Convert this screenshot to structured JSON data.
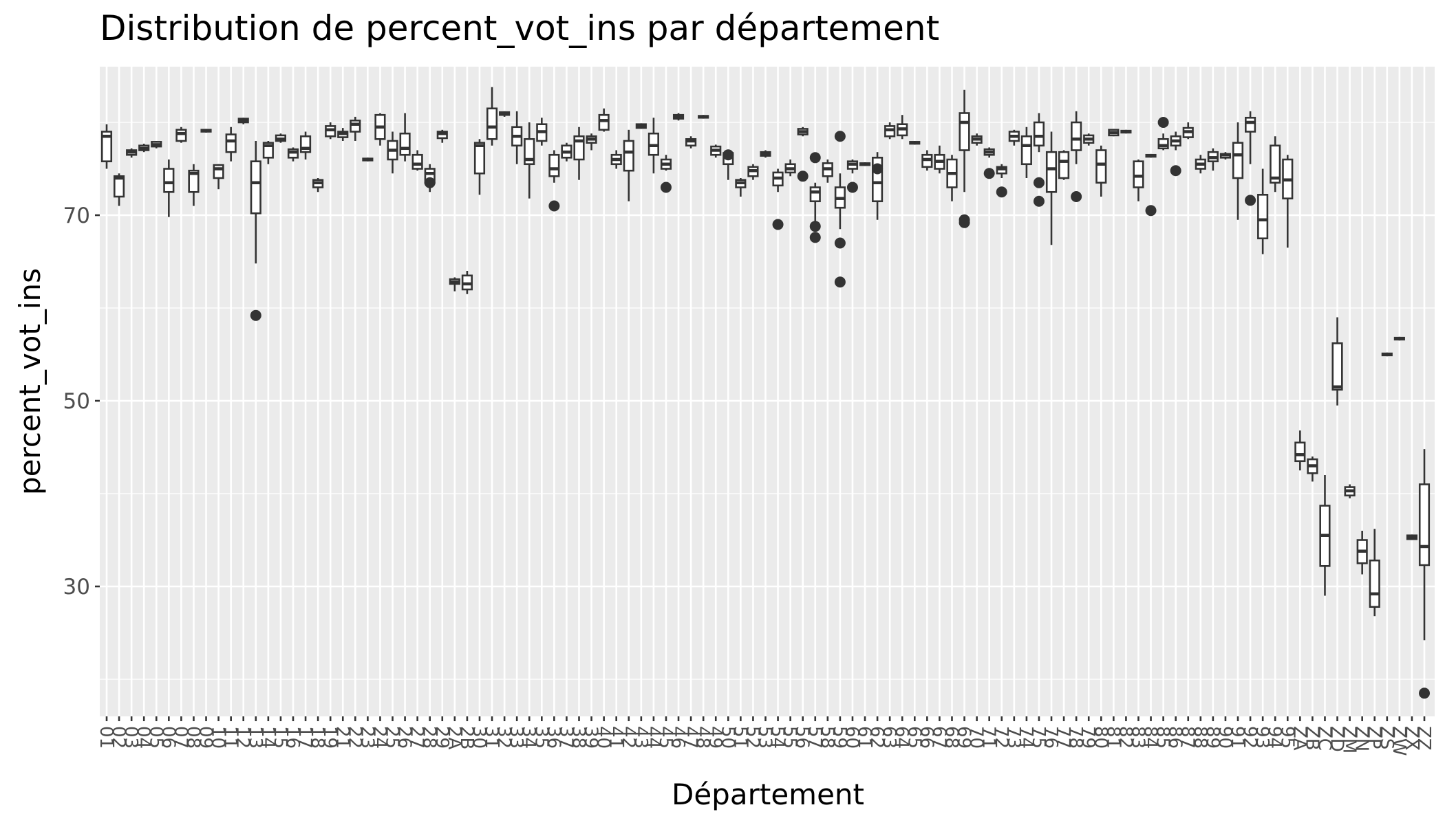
{
  "chart_data": {
    "type": "boxplot",
    "title": "Distribution de percent_vot_ins par département",
    "xlabel": "Département",
    "ylabel": "percent_vot_ins",
    "ylim": [
      16,
      86
    ],
    "yticks": [
      30,
      50,
      70
    ],
    "grid": true,
    "legend": "none",
    "colors": {
      "panel": "#EBEBEB",
      "grid": "#FFFFFF",
      "box_line": "#333333",
      "outlier": "#333333",
      "box_fill": "#FFFFFF"
    },
    "tick_labels_visible": [
      "01",
      "02",
      "03",
      "04",
      "05",
      "06",
      "07",
      "08",
      "09",
      "10",
      "11",
      "12",
      "13",
      "14",
      "15",
      "16",
      "17",
      "18",
      "19",
      "21",
      "22",
      "23",
      "24",
      "25",
      "26",
      "27",
      "28",
      "29",
      "2A",
      "2B",
      "30",
      "31",
      "32",
      "33",
      "34",
      "35",
      "36",
      "37",
      "38",
      "39",
      "40",
      "41",
      "42",
      "43",
      "44",
      "45",
      "46",
      "47",
      "48",
      "49",
      "50",
      "51",
      "52",
      "53",
      "54",
      "55",
      "56",
      "57",
      "58",
      "59",
      "60",
      "61",
      "62",
      "63",
      "64",
      "65",
      "66",
      "67",
      "68",
      "69",
      "70",
      "71",
      "72",
      "73",
      "74",
      "75",
      "76",
      "77",
      "78",
      "79",
      "80",
      "81",
      "82",
      "83",
      "84",
      "85",
      "86",
      "87",
      "88",
      "89",
      "90",
      "91",
      "92",
      "93",
      "94",
      "95",
      "ZA",
      "ZB",
      "ZC",
      "ZD",
      "ZM",
      "ZN",
      "ZP",
      "ZS",
      "ZW",
      "ZX",
      "ZZ"
    ],
    "categories": [
      "01",
      "02",
      "03",
      "04",
      "05",
      "06",
      "07",
      "08",
      "09",
      "10",
      "11",
      "12",
      "13",
      "14",
      "15",
      "16",
      "17",
      "18",
      "19",
      "21",
      "22",
      "23",
      "24",
      "25",
      "26",
      "27",
      "28",
      "29",
      "2A",
      "2B",
      "30",
      "31",
      "32",
      "33",
      "34",
      "35",
      "36",
      "37",
      "38",
      "39",
      "40",
      "41",
      "42",
      "43",
      "44",
      "45",
      "46",
      "47",
      "48",
      "49",
      "50",
      "51",
      "52",
      "53",
      "54",
      "55",
      "56",
      "57",
      "58",
      "59",
      "60",
      "61",
      "62",
      "63",
      "64",
      "65",
      "66",
      "67",
      "68",
      "69",
      "70",
      "71",
      "72",
      "73",
      "74",
      "75",
      "76",
      "77",
      "78",
      "79",
      "80",
      "81",
      "82",
      "83",
      "84",
      "85",
      "86",
      "87",
      "88",
      "89",
      "90",
      "91",
      "92",
      "93",
      "94",
      "95",
      "ZA",
      "ZB",
      "ZC",
      "ZD",
      "ZM",
      "ZN",
      "ZP",
      "ZS",
      "ZW",
      "ZX",
      "ZZ"
    ],
    "boxes": [
      {
        "low": 75,
        "q1": 75.8,
        "med": 78.5,
        "q3": 79,
        "high": 79.8,
        "out": []
      },
      {
        "low": 71,
        "q1": 72,
        "med": 74,
        "q3": 74.2,
        "high": 74.5,
        "out": []
      },
      {
        "low": 76.2,
        "q1": 76.5,
        "med": 76.8,
        "q3": 77,
        "high": 77.2,
        "out": []
      },
      {
        "low": 76.8,
        "q1": 77,
        "med": 77.2,
        "q3": 77.5,
        "high": 77.7,
        "out": []
      },
      {
        "low": 77.2,
        "q1": 77.4,
        "med": 77.6,
        "q3": 77.9,
        "high": 78,
        "out": []
      },
      {
        "low": 69.8,
        "q1": 72.5,
        "med": 73.5,
        "q3": 75,
        "high": 76,
        "out": []
      },
      {
        "low": 77.8,
        "q1": 78,
        "med": 78.8,
        "q3": 79.2,
        "high": 79.5,
        "out": []
      },
      {
        "low": 71,
        "q1": 72.5,
        "med": 74.5,
        "q3": 74.8,
        "high": 75.5,
        "out": []
      },
      {
        "low": 78.9,
        "q1": 79,
        "med": 79.1,
        "q3": 79.2,
        "high": 79.3,
        "out": []
      },
      {
        "low": 72.8,
        "q1": 74,
        "med": 75,
        "q3": 75.4,
        "high": 75.5,
        "out": []
      },
      {
        "low": 75.8,
        "q1": 76.8,
        "med": 78,
        "q3": 78.7,
        "high": 79.5,
        "out": []
      },
      {
        "low": 79.8,
        "q1": 80,
        "med": 80.2,
        "q3": 80.4,
        "high": 80.5,
        "out": []
      },
      {
        "low": 64.8,
        "q1": 70.2,
        "med": 73.5,
        "q3": 75.8,
        "high": 78,
        "out": [
          59.2
        ]
      },
      {
        "low": 75.5,
        "q1": 76.2,
        "med": 77.5,
        "q3": 77.8,
        "high": 78,
        "out": []
      },
      {
        "low": 77.8,
        "q1": 78,
        "med": 78.2,
        "q3": 78.6,
        "high": 78.8,
        "out": []
      },
      {
        "low": 75.8,
        "q1": 76.2,
        "med": 76.8,
        "q3": 77.1,
        "high": 77.3,
        "out": []
      },
      {
        "low": 76,
        "q1": 76.8,
        "med": 77.2,
        "q3": 78.5,
        "high": 79,
        "out": []
      },
      {
        "low": 72.5,
        "q1": 73,
        "med": 73.5,
        "q3": 73.8,
        "high": 74,
        "out": []
      },
      {
        "low": 78.2,
        "q1": 78.5,
        "med": 79.2,
        "q3": 79.6,
        "high": 80,
        "out": []
      },
      {
        "low": 78,
        "q1": 78.4,
        "med": 78.8,
        "q3": 79,
        "high": 79.4,
        "out": []
      },
      {
        "low": 78,
        "q1": 79,
        "med": 79.8,
        "q3": 80.2,
        "high": 80.6,
        "out": []
      },
      {
        "low": 75.8,
        "q1": 75.9,
        "med": 76,
        "q3": 76.1,
        "high": 76.2,
        "out": []
      },
      {
        "low": 77.5,
        "q1": 78.2,
        "med": 79.5,
        "q3": 80.8,
        "high": 81,
        "out": []
      },
      {
        "low": 74.5,
        "q1": 76,
        "med": 77,
        "q3": 78,
        "high": 79,
        "out": []
      },
      {
        "low": 75.8,
        "q1": 76.5,
        "med": 77.2,
        "q3": 78.8,
        "high": 81,
        "out": []
      },
      {
        "low": 74.8,
        "q1": 75,
        "med": 75.5,
        "q3": 76.5,
        "high": 77,
        "out": []
      },
      {
        "low": 72.5,
        "q1": 73.5,
        "med": 74.5,
        "q3": 75,
        "high": 75.5,
        "out": [
          73.5
        ]
      },
      {
        "low": 77.8,
        "q1": 78.3,
        "med": 78.8,
        "q3": 79,
        "high": 79.2,
        "out": []
      },
      {
        "low": 61.8,
        "q1": 62.6,
        "med": 62.8,
        "q3": 63.1,
        "high": 63.3,
        "out": []
      },
      {
        "low": 61.5,
        "q1": 62,
        "med": 62.6,
        "q3": 63.5,
        "high": 64,
        "out": []
      },
      {
        "low": 72.2,
        "q1": 74.5,
        "med": 77.5,
        "q3": 77.8,
        "high": 78.2,
        "out": []
      },
      {
        "low": 77.5,
        "q1": 78.2,
        "med": 79.5,
        "q3": 81.5,
        "high": 83.8,
        "out": []
      },
      {
        "low": 80.6,
        "q1": 80.8,
        "med": 81,
        "q3": 81.1,
        "high": 81.2,
        "out": []
      },
      {
        "low": 75.5,
        "q1": 77.5,
        "med": 78.5,
        "q3": 79.5,
        "high": 81.2,
        "out": []
      },
      {
        "low": 71.8,
        "q1": 75.5,
        "med": 76,
        "q3": 78.2,
        "high": 80,
        "out": []
      },
      {
        "low": 77.5,
        "q1": 78,
        "med": 79,
        "q3": 79.8,
        "high": 80.5,
        "out": []
      },
      {
        "low": 73.5,
        "q1": 74.2,
        "med": 75,
        "q3": 76.5,
        "high": 77,
        "out": [
          71
        ]
      },
      {
        "low": 75.8,
        "q1": 76.2,
        "med": 76.8,
        "q3": 77.5,
        "high": 77.8,
        "out": []
      },
      {
        "low": 73.8,
        "q1": 76,
        "med": 78,
        "q3": 78.5,
        "high": 79.5,
        "out": []
      },
      {
        "low": 77,
        "q1": 77.8,
        "med": 78.2,
        "q3": 78.5,
        "high": 78.8,
        "out": []
      },
      {
        "low": 79,
        "q1": 79.2,
        "med": 80.2,
        "q3": 80.8,
        "high": 81.5,
        "out": []
      },
      {
        "low": 75,
        "q1": 75.5,
        "med": 76,
        "q3": 76.5,
        "high": 77,
        "out": []
      },
      {
        "low": 71.5,
        "q1": 74.8,
        "med": 76.8,
        "q3": 78,
        "high": 79.2,
        "out": []
      },
      {
        "low": 79.3,
        "q1": 79.4,
        "med": 79.6,
        "q3": 79.8,
        "high": 79.9,
        "out": []
      },
      {
        "low": 74.5,
        "q1": 76.5,
        "med": 77.5,
        "q3": 78.8,
        "high": 80.5,
        "out": []
      },
      {
        "low": 74.8,
        "q1": 75,
        "med": 75.5,
        "q3": 76,
        "high": 76.5,
        "out": [
          73
        ]
      },
      {
        "low": 80.2,
        "q1": 80.4,
        "med": 80.6,
        "q3": 80.8,
        "high": 81,
        "out": []
      },
      {
        "low": 77.2,
        "q1": 77.5,
        "med": 78,
        "q3": 78.2,
        "high": 78.5,
        "out": []
      },
      {
        "low": 80.4,
        "q1": 80.5,
        "med": 80.6,
        "q3": 80.7,
        "high": 80.8,
        "out": []
      },
      {
        "low": 76.2,
        "q1": 76.5,
        "med": 77,
        "q3": 77.4,
        "high": 77.6,
        "out": []
      },
      {
        "low": 73.8,
        "q1": 75.5,
        "med": 76.5,
        "q3": 76.7,
        "high": 76.8,
        "out": [
          76.5
        ]
      },
      {
        "low": 72,
        "q1": 73,
        "med": 73.5,
        "q3": 73.8,
        "high": 74,
        "out": []
      },
      {
        "low": 73.8,
        "q1": 74.2,
        "med": 74.8,
        "q3": 75.2,
        "high": 75.5,
        "out": []
      },
      {
        "low": 76.2,
        "q1": 76.4,
        "med": 76.6,
        "q3": 76.8,
        "high": 77,
        "out": []
      },
      {
        "low": 72.5,
        "q1": 73.2,
        "med": 74,
        "q3": 74.6,
        "high": 75,
        "out": [
          69
        ]
      },
      {
        "low": 74.2,
        "q1": 74.6,
        "med": 75,
        "q3": 75.5,
        "high": 76,
        "out": []
      },
      {
        "low": 78.5,
        "q1": 78.7,
        "med": 79,
        "q3": 79.3,
        "high": 79.5,
        "out": [
          74.2
        ]
      },
      {
        "low": 69.2,
        "q1": 71.5,
        "med": 72.5,
        "q3": 73,
        "high": 73.5,
        "out": [
          76.2,
          68.8,
          67.6
        ]
      },
      {
        "low": 73.5,
        "q1": 74.2,
        "med": 75,
        "q3": 75.6,
        "high": 76,
        "out": []
      },
      {
        "low": 68.5,
        "q1": 70.8,
        "med": 71.8,
        "q3": 73,
        "high": 74.5,
        "out": [
          78.5,
          67,
          62.8
        ]
      },
      {
        "low": 74.5,
        "q1": 75,
        "med": 75.5,
        "q3": 75.8,
        "high": 76,
        "out": [
          73
        ]
      },
      {
        "low": 75.3,
        "q1": 75.4,
        "med": 75.5,
        "q3": 75.6,
        "high": 75.7,
        "out": []
      },
      {
        "low": 69.5,
        "q1": 71.5,
        "med": 73.5,
        "q3": 76.2,
        "high": 76.8,
        "out": [
          75
        ]
      },
      {
        "low": 78.2,
        "q1": 78.5,
        "med": 79.2,
        "q3": 79.6,
        "high": 80,
        "out": []
      },
      {
        "low": 78.2,
        "q1": 78.6,
        "med": 79.3,
        "q3": 79.8,
        "high": 80.8,
        "out": []
      },
      {
        "low": 77.6,
        "q1": 77.7,
        "med": 77.8,
        "q3": 77.9,
        "high": 78,
        "out": []
      },
      {
        "low": 74.8,
        "q1": 75.2,
        "med": 76,
        "q3": 76.5,
        "high": 77,
        "out": []
      },
      {
        "low": 74.5,
        "q1": 75,
        "med": 75.8,
        "q3": 76.5,
        "high": 77.5,
        "out": []
      },
      {
        "low": 71.5,
        "q1": 73,
        "med": 74.5,
        "q3": 76,
        "high": 76.5,
        "out": []
      },
      {
        "low": 72.5,
        "q1": 77,
        "med": 80,
        "q3": 81,
        "high": 83.5,
        "out": [
          69.5,
          69.2
        ]
      },
      {
        "low": 77.5,
        "q1": 77.8,
        "med": 78.2,
        "q3": 78.5,
        "high": 78.8,
        "out": []
      },
      {
        "low": 76.2,
        "q1": 76.5,
        "med": 76.8,
        "q3": 77.1,
        "high": 77.3,
        "out": [
          74.5
        ]
      },
      {
        "low": 74,
        "q1": 74.5,
        "med": 75,
        "q3": 75.2,
        "high": 75.5,
        "out": [
          72.5
        ]
      },
      {
        "low": 77.5,
        "q1": 78,
        "med": 78.5,
        "q3": 79,
        "high": 79.2,
        "out": []
      },
      {
        "low": 74,
        "q1": 75.5,
        "med": 77.5,
        "q3": 78.5,
        "high": 79.5,
        "out": []
      },
      {
        "low": 76.8,
        "q1": 77.5,
        "med": 78.5,
        "q3": 80,
        "high": 81,
        "out": [
          73.5,
          71.5
        ]
      },
      {
        "low": 66.8,
        "q1": 72.5,
        "med": 75,
        "q3": 76.8,
        "high": 79,
        "out": []
      },
      {
        "low": 73.8,
        "q1": 74,
        "med": 75.8,
        "q3": 76.8,
        "high": 77,
        "out": []
      },
      {
        "low": 75.5,
        "q1": 77,
        "med": 78.2,
        "q3": 80,
        "high": 81.2,
        "out": [
          72
        ]
      },
      {
        "low": 77.5,
        "q1": 77.8,
        "med": 78.2,
        "q3": 78.6,
        "high": 78.8,
        "out": []
      },
      {
        "low": 72,
        "q1": 73.5,
        "med": 75.5,
        "q3": 77,
        "high": 77.5,
        "out": []
      },
      {
        "low": 78.5,
        "q1": 78.6,
        "med": 78.9,
        "q3": 79.2,
        "high": 79.3,
        "out": []
      },
      {
        "low": 78.8,
        "q1": 78.9,
        "med": 79,
        "q3": 79.1,
        "high": 79.2,
        "out": []
      },
      {
        "low": 71.5,
        "q1": 73,
        "med": 74.2,
        "q3": 75.8,
        "high": 76,
        "out": []
      },
      {
        "low": 76.2,
        "q1": 76.3,
        "med": 76.4,
        "q3": 76.5,
        "high": 76.6,
        "out": [
          70.5
        ]
      },
      {
        "low": 77,
        "q1": 77.2,
        "med": 77.5,
        "q3": 78.2,
        "high": 78.8,
        "out": [
          80
        ]
      },
      {
        "low": 77,
        "q1": 77.5,
        "med": 78,
        "q3": 78.5,
        "high": 79,
        "out": [
          74.8
        ]
      },
      {
        "low": 78.2,
        "q1": 78.4,
        "med": 79,
        "q3": 79.4,
        "high": 80,
        "out": []
      },
      {
        "low": 74.5,
        "q1": 75,
        "med": 75.5,
        "q3": 76,
        "high": 76.5,
        "out": []
      },
      {
        "low": 74.8,
        "q1": 75.8,
        "med": 76.2,
        "q3": 76.8,
        "high": 77.2,
        "out": []
      },
      {
        "low": 76,
        "q1": 76.2,
        "med": 76.5,
        "q3": 76.6,
        "high": 76.8,
        "out": []
      },
      {
        "low": 69.5,
        "q1": 74,
        "med": 76.5,
        "q3": 77.8,
        "high": 80,
        "out": []
      },
      {
        "low": 75.5,
        "q1": 79,
        "med": 80,
        "q3": 80.5,
        "high": 81.2,
        "out": [
          71.6
        ]
      },
      {
        "low": 65.8,
        "q1": 67.5,
        "med": 69.5,
        "q3": 72.2,
        "high": 75,
        "out": []
      },
      {
        "low": 72.5,
        "q1": 73.5,
        "med": 74,
        "q3": 77.5,
        "high": 78.5,
        "out": []
      },
      {
        "low": 66.5,
        "q1": 71.8,
        "med": 73.8,
        "q3": 76,
        "high": 76.5,
        "out": []
      },
      {
        "low": 42.5,
        "q1": 43.5,
        "med": 44.2,
        "q3": 45.5,
        "high": 46.8,
        "out": []
      },
      {
        "low": 41.3,
        "q1": 42.2,
        "med": 43,
        "q3": 43.7,
        "high": 44,
        "out": []
      },
      {
        "low": 29,
        "q1": 32.2,
        "med": 35.5,
        "q3": 38.7,
        "high": 42
      },
      {
        "low": 49.5,
        "q1": 51.2,
        "med": 51.5,
        "q3": 56.2,
        "high": 59
      },
      {
        "low": 39.5,
        "q1": 39.8,
        "med": 40.3,
        "q3": 40.7,
        "high": 41,
        "out": []
      },
      {
        "low": 31.3,
        "q1": 32.5,
        "med": 33.8,
        "q3": 35,
        "high": 36,
        "out": []
      },
      {
        "low": 26.8,
        "q1": 27.8,
        "med": 29.2,
        "q3": 32.8,
        "high": 36.2,
        "out": []
      },
      {
        "low": 54.8,
        "q1": 54.9,
        "med": 55,
        "q3": 55.1,
        "high": 55.2,
        "out": []
      },
      {
        "low": 56.5,
        "q1": 56.6,
        "med": 56.7,
        "q3": 56.8,
        "high": 56.9,
        "out": []
      },
      {
        "low": 35,
        "q1": 35.1,
        "med": 35.3,
        "q3": 35.5,
        "high": 35.6,
        "out": []
      },
      {
        "low": 24.2,
        "q1": 32.3,
        "med": 34.3,
        "q3": 41,
        "high": 44.8,
        "out": [
          18.5
        ]
      }
    ]
  }
}
